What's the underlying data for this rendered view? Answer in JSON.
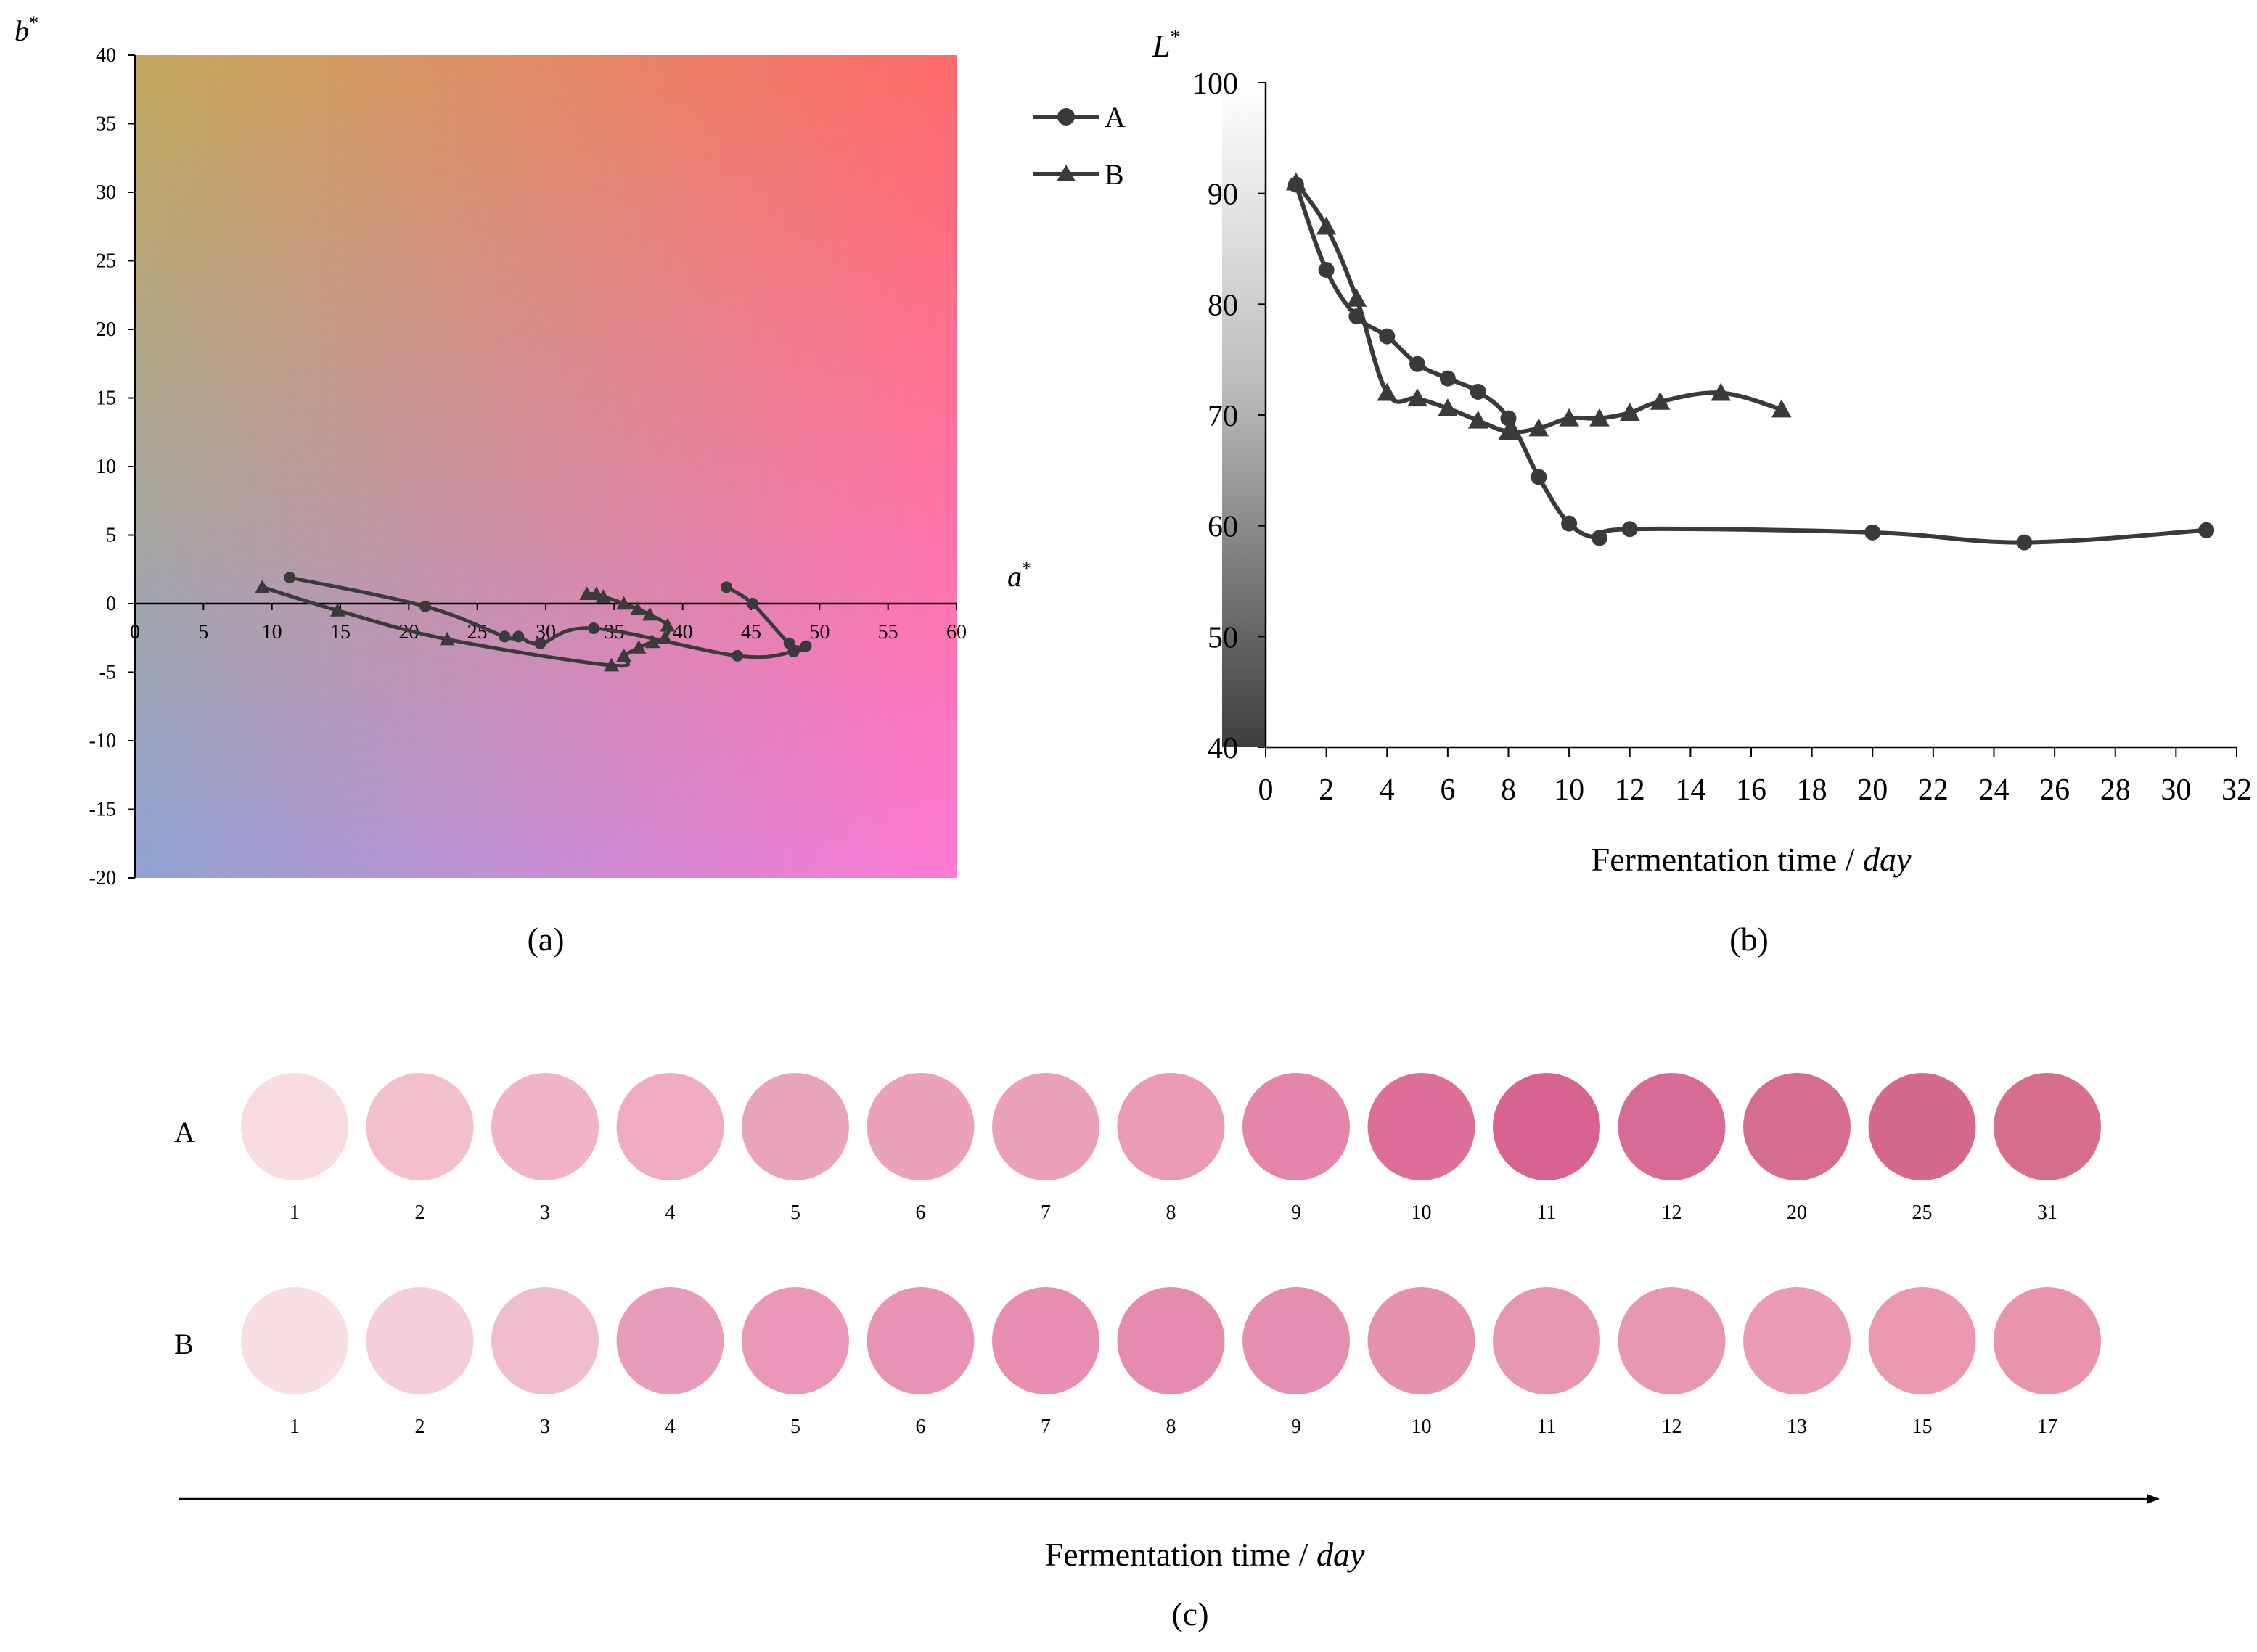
{
  "chart_data": [
    {
      "panel": "a",
      "type": "scatter",
      "caption": "(a)",
      "xlabel": "a",
      "xlabel_sup": "*",
      "ylabel": "b",
      "ylabel_sup": "*",
      "xlim": [
        0,
        60
      ],
      "ylim": [
        -20,
        40
      ],
      "xticks": [
        0,
        5,
        10,
        15,
        20,
        25,
        30,
        35,
        40,
        45,
        50,
        55,
        60
      ],
      "yticks": [
        -20,
        -15,
        -10,
        -5,
        0,
        5,
        10,
        15,
        20,
        25,
        30,
        35,
        40
      ],
      "background": {
        "top_left": "#c4aa5d",
        "top_right": "#ff6a6a",
        "bottom_left": "#8fa3d4",
        "bottom_right": "#ff7ad5"
      },
      "legend": {
        "position": "right",
        "entries": [
          {
            "label": "A",
            "marker": "circle"
          },
          {
            "label": "B",
            "marker": "triangle"
          }
        ]
      },
      "series": [
        {
          "name": "A",
          "marker": "circle",
          "points": [
            [
              43.2,
              1.2
            ],
            [
              45.1,
              0.0
            ],
            [
              47.8,
              -2.9
            ],
            [
              49.0,
              -3.1
            ],
            [
              48.1,
              -3.5
            ],
            [
              44.0,
              -3.8
            ],
            [
              33.5,
              -1.8
            ],
            [
              29.6,
              -2.9
            ],
            [
              28.0,
              -2.4
            ],
            [
              27.0,
              -2.4
            ],
            [
              21.2,
              -0.2
            ],
            [
              11.3,
              1.9
            ]
          ]
        },
        {
          "name": "B",
          "marker": "triangle",
          "points": [
            [
              9.3,
              1.2
            ],
            [
              14.8,
              -0.5
            ],
            [
              22.8,
              -2.6
            ],
            [
              34.8,
              -4.5
            ],
            [
              35.7,
              -3.8
            ],
            [
              36.8,
              -3.2
            ],
            [
              37.8,
              -2.8
            ],
            [
              38.7,
              -2.5
            ],
            [
              38.9,
              -1.6
            ],
            [
              37.6,
              -0.8
            ],
            [
              36.7,
              -0.4
            ],
            [
              35.7,
              0.0
            ],
            [
              34.2,
              0.5
            ],
            [
              33.0,
              0.7
            ],
            [
              33.7,
              0.7
            ]
          ]
        }
      ]
    },
    {
      "panel": "b",
      "type": "line",
      "caption": "(b)",
      "xlabel": "Fermentation time / ",
      "xlabel_unit": "day",
      "ylabel": "L",
      "ylabel_sup": "*",
      "xlim": [
        0,
        32
      ],
      "ylim": [
        40,
        100
      ],
      "xticks": [
        0,
        2,
        4,
        6,
        8,
        10,
        12,
        14,
        16,
        18,
        20,
        22,
        24,
        26,
        28,
        30,
        32
      ],
      "yticks": [
        40,
        50,
        60,
        70,
        80,
        90,
        100
      ],
      "series": [
        {
          "name": "A",
          "marker": "circle",
          "x": [
            1,
            2,
            3,
            4,
            5,
            6,
            7,
            8,
            9,
            10,
            11,
            12,
            20,
            25,
            31
          ],
          "y": [
            90.8,
            83.1,
            78.9,
            77.1,
            74.6,
            73.3,
            72.1,
            69.7,
            64.4,
            60.2,
            58.9,
            59.7,
            59.4,
            58.5,
            59.6
          ]
        },
        {
          "name": "B",
          "marker": "triangle",
          "x": [
            1,
            2,
            3,
            4,
            5,
            6,
            7,
            8,
            9,
            10,
            11,
            12,
            13,
            15,
            17
          ],
          "y": [
            91.0,
            87.0,
            80.5,
            72.0,
            71.5,
            70.6,
            69.5,
            68.5,
            68.8,
            69.7,
            69.7,
            70.2,
            71.2,
            72.0,
            70.5
          ]
        }
      ]
    },
    {
      "panel": "c",
      "type": "color_swatches",
      "caption": "(c)",
      "xlabel": "Fermentation time / ",
      "xlabel_unit": "day",
      "rows": [
        {
          "name": "A",
          "days": [
            "1",
            "2",
            "3",
            "4",
            "5",
            "6",
            "7",
            "8",
            "9",
            "10",
            "11",
            "12",
            "20",
            "25",
            "31"
          ],
          "colors": [
            "#f8dce1",
            "#f2bfcb",
            "#f0b3c8",
            "#eeabc3",
            "#e8a5ba",
            "#eba1b9",
            "#eba0b9",
            "#eb9bb5",
            "#e386aa",
            "#dc6e98",
            "#d66390",
            "#d86a96",
            "#d56c92",
            "#d5688d",
            "#d56f8b"
          ]
        },
        {
          "name": "B",
          "days": [
            "1",
            "2",
            "3",
            "4",
            "5",
            "6",
            "7",
            "8",
            "9",
            "10",
            "11",
            "12",
            "13",
            "15",
            "17"
          ],
          "colors": [
            "#f8dfe4",
            "#f4cfda",
            "#efbcd0",
            "#e99bbc",
            "#ea97b8",
            "#e893b4",
            "#e78eb1",
            "#e58cae",
            "#e68eb0",
            "#e691ae",
            "#e897b3",
            "#e897b3",
            "#eb9bb5",
            "#ea99b1",
            "#e993ad"
          ]
        }
      ]
    }
  ]
}
